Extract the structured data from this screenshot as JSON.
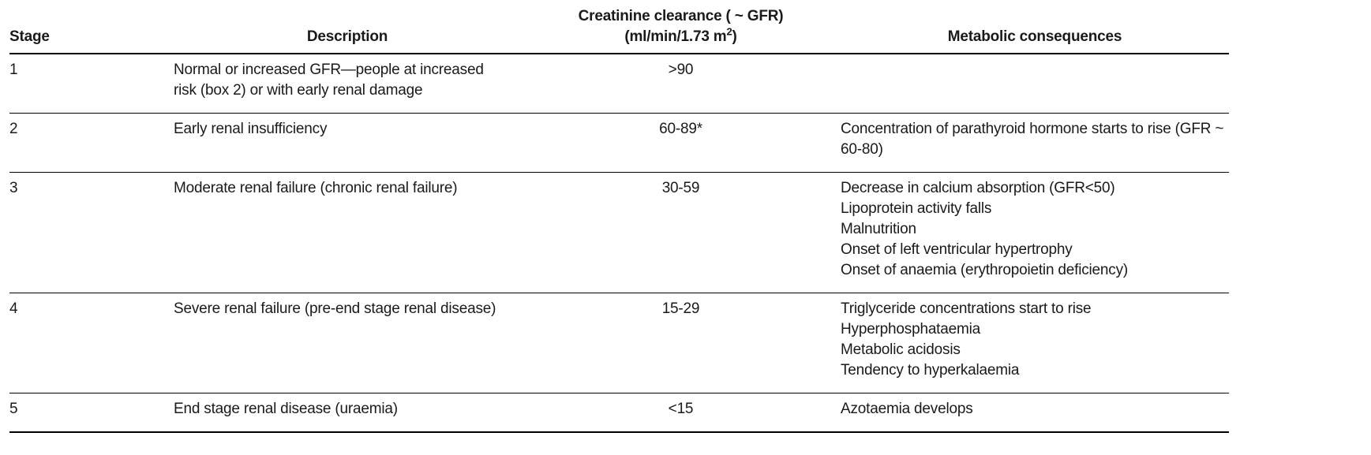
{
  "table": {
    "headers": {
      "stage": "Stage",
      "description": "Description",
      "clearance_line1": "Creatinine clearance ( ~ GFR)",
      "clearance_line2_pre": "(ml/min/1.73 m",
      "clearance_line2_sup": "2",
      "clearance_line2_post": ")",
      "consequences": "Metabolic consequences"
    },
    "rows": [
      {
        "stage": "1",
        "description": "Normal or increased GFR—people at increased risk (box 2) or with early renal damage",
        "clearance": ">90",
        "consequences": []
      },
      {
        "stage": "2",
        "description": "Early renal insufficiency",
        "clearance": "60-89*",
        "consequences": [
          "Concentration of parathyroid hormone starts to rise (GFR ~ 60-80)"
        ]
      },
      {
        "stage": "3",
        "description": "Moderate renal failure (chronic renal failure)",
        "clearance": "30-59",
        "consequences": [
          "Decrease in calcium absorption (GFR<50)",
          "Lipoprotein activity falls",
          "Malnutrition",
          "Onset of left ventricular hypertrophy",
          "Onset of anaemia (erythropoietin deficiency)"
        ]
      },
      {
        "stage": "4",
        "description": "Severe renal failure (pre-end stage renal disease)",
        "clearance": "15-29",
        "consequences": [
          "Triglyceride concentrations start to rise",
          "Hyperphosphataemia",
          "Metabolic acidosis",
          "Tendency to hyperkalaemia"
        ]
      },
      {
        "stage": "5",
        "description": "End stage renal disease (uraemia)",
        "clearance": "<15",
        "consequences": [
          "Azotaemia develops"
        ]
      }
    ]
  }
}
